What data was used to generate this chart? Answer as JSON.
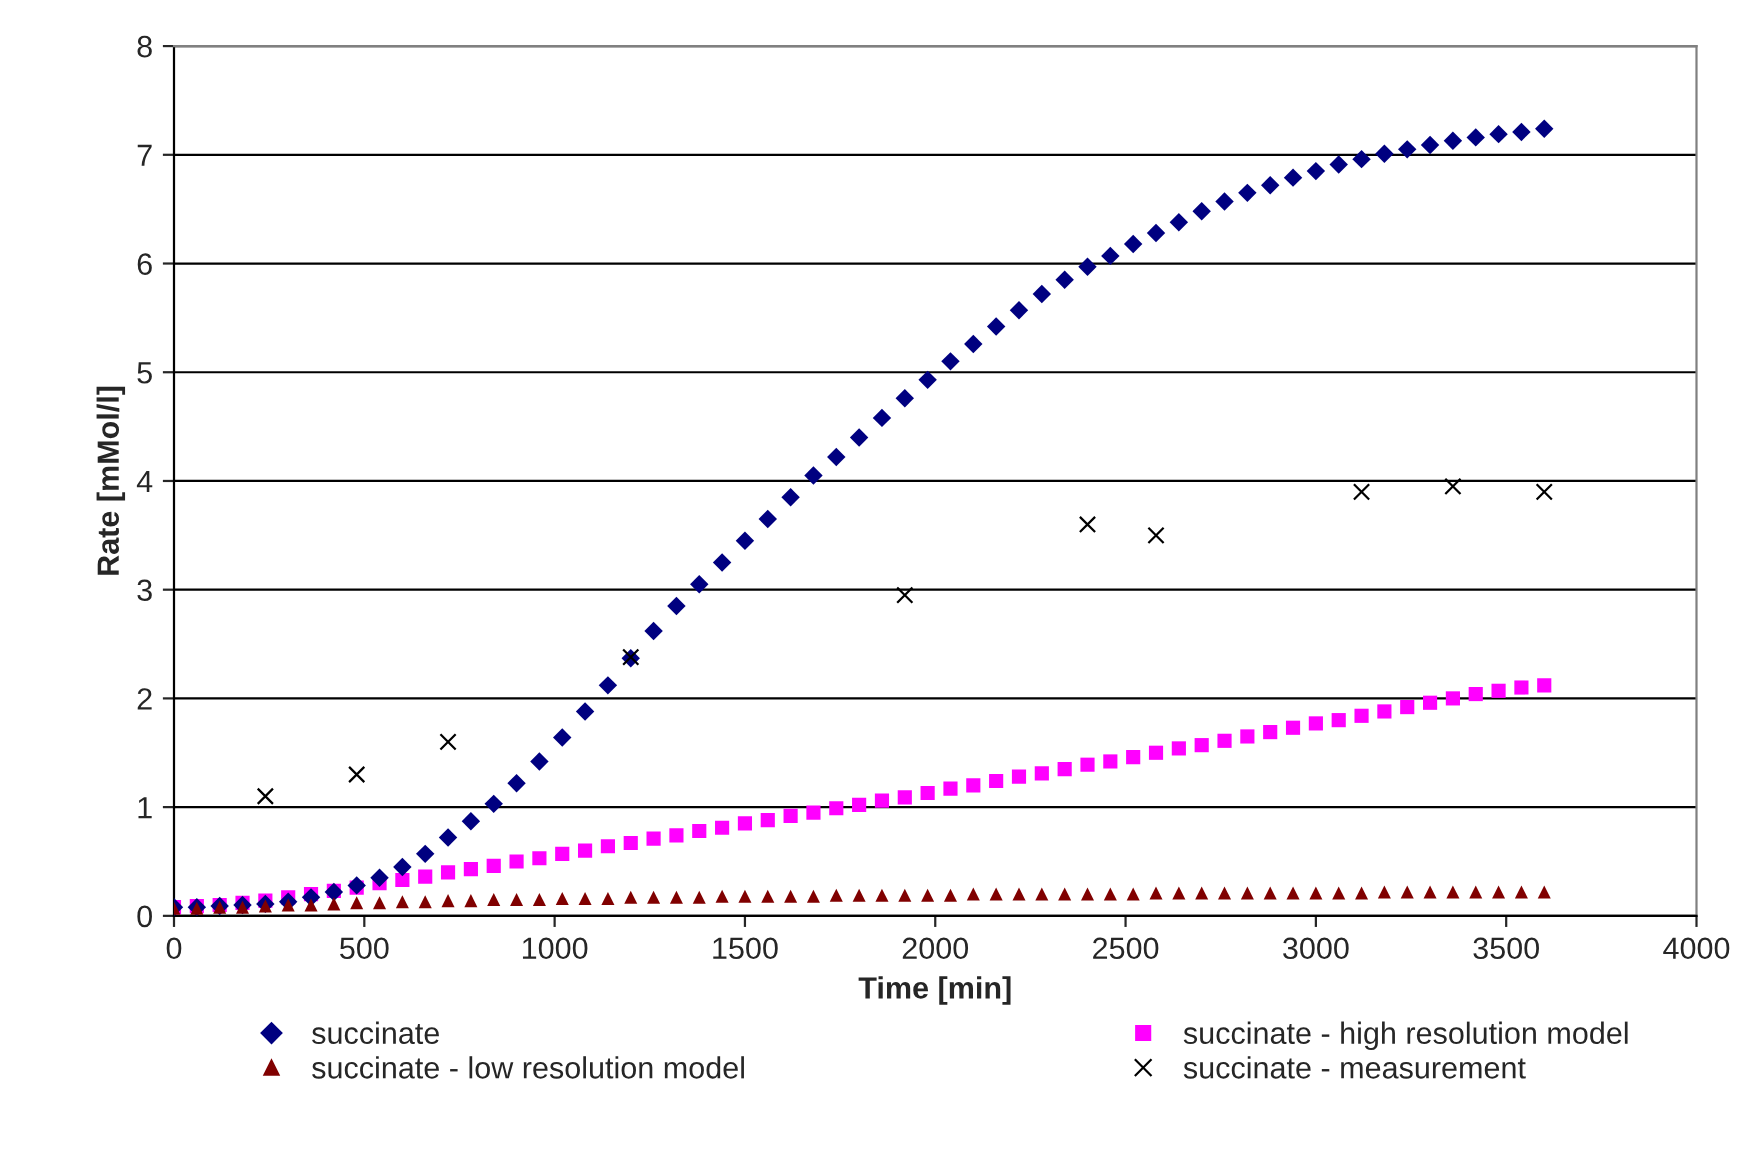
{
  "chart_data": {
    "type": "scatter",
    "xlabel": "Time [min]",
    "ylabel": "Rate [mMol/l]",
    "x": [
      0,
      60,
      120,
      180,
      240,
      300,
      360,
      420,
      480,
      540,
      600,
      660,
      720,
      780,
      840,
      900,
      960,
      1020,
      1080,
      1140,
      1200,
      1260,
      1320,
      1380,
      1440,
      1500,
      1560,
      1620,
      1680,
      1740,
      1800,
      1860,
      1920,
      1980,
      2040,
      2100,
      2160,
      2220,
      2280,
      2340,
      2400,
      2460,
      2520,
      2580,
      2640,
      2700,
      2760,
      2820,
      2880,
      2940,
      3000,
      3060,
      3120,
      3180,
      3240,
      3300,
      3360,
      3420,
      3480,
      3540,
      3600
    ],
    "series": [
      {
        "name": "succinate",
        "color": "#000080",
        "marker": "diamond",
        "values": [
          0.08,
          0.08,
          0.09,
          0.1,
          0.11,
          0.13,
          0.17,
          0.22,
          0.28,
          0.35,
          0.45,
          0.57,
          0.72,
          0.87,
          1.03,
          1.22,
          1.42,
          1.64,
          1.88,
          2.12,
          2.37,
          2.62,
          2.85,
          3.05,
          3.25,
          3.45,
          3.65,
          3.85,
          4.05,
          4.22,
          4.4,
          4.58,
          4.76,
          4.93,
          5.1,
          5.26,
          5.42,
          5.57,
          5.72,
          5.85,
          5.97,
          6.07,
          6.18,
          6.28,
          6.38,
          6.48,
          6.57,
          6.65,
          6.72,
          6.79,
          6.85,
          6.91,
          6.96,
          7.01,
          7.05,
          7.09,
          7.13,
          7.16,
          7.19,
          7.21,
          7.24
        ]
      },
      {
        "name": "succinate - high resolution model",
        "color": "#ff00ff",
        "marker": "square",
        "values": [
          0.08,
          0.09,
          0.1,
          0.12,
          0.14,
          0.17,
          0.2,
          0.23,
          0.26,
          0.3,
          0.33,
          0.36,
          0.4,
          0.43,
          0.46,
          0.5,
          0.53,
          0.57,
          0.6,
          0.64,
          0.67,
          0.71,
          0.74,
          0.78,
          0.81,
          0.85,
          0.88,
          0.92,
          0.95,
          0.99,
          1.02,
          1.06,
          1.09,
          1.13,
          1.17,
          1.2,
          1.24,
          1.28,
          1.31,
          1.35,
          1.39,
          1.42,
          1.46,
          1.5,
          1.54,
          1.57,
          1.61,
          1.65,
          1.69,
          1.73,
          1.77,
          1.8,
          1.84,
          1.88,
          1.92,
          1.96,
          2.0,
          2.04,
          2.07,
          2.1,
          2.12
        ]
      },
      {
        "name": "succinate - low resolution model",
        "color": "#800000",
        "marker": "triangle",
        "values": [
          0.07,
          0.07,
          0.08,
          0.08,
          0.09,
          0.1,
          0.1,
          0.11,
          0.12,
          0.12,
          0.13,
          0.13,
          0.14,
          0.14,
          0.15,
          0.15,
          0.15,
          0.16,
          0.16,
          0.16,
          0.17,
          0.17,
          0.17,
          0.17,
          0.18,
          0.18,
          0.18,
          0.18,
          0.18,
          0.19,
          0.19,
          0.19,
          0.19,
          0.19,
          0.19,
          0.2,
          0.2,
          0.2,
          0.2,
          0.2,
          0.2,
          0.2,
          0.2,
          0.21,
          0.21,
          0.21,
          0.21,
          0.21,
          0.21,
          0.21,
          0.21,
          0.21,
          0.21,
          0.22,
          0.22,
          0.22,
          0.22,
          0.22,
          0.22,
          0.22,
          0.22
        ]
      },
      {
        "name": "succinate - measurement",
        "color": "#000000",
        "marker": "cross",
        "x": [
          240,
          480,
          720,
          1200,
          1920,
          2400,
          2580,
          3120,
          3360,
          3600
        ],
        "values": [
          1.1,
          1.3,
          1.6,
          2.38,
          2.95,
          3.6,
          3.5,
          3.9,
          3.95,
          3.9
        ]
      }
    ],
    "xlim": [
      0,
      4000
    ],
    "xticks": [
      0,
      500,
      1000,
      1500,
      2000,
      2500,
      3000,
      3500,
      4000
    ],
    "ylim": [
      0,
      8
    ],
    "yticks": [
      0,
      1,
      2,
      3,
      4,
      5,
      6,
      7,
      8
    ],
    "grid": "y",
    "legend": "bottom"
  }
}
